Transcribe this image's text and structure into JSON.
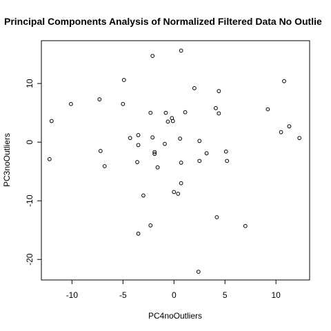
{
  "chart_data": {
    "type": "scatter",
    "title": "Principal Components Analysis of Normalized Filtered Data No Outlie",
    "xlabel": "PC4noOutliers",
    "ylabel": "PC3noOutliers",
    "xlim": [
      -13,
      13.3
    ],
    "ylim": [
      -23.5,
      17.3
    ],
    "x_ticks": [
      -10,
      -5,
      0,
      5,
      10
    ],
    "x_tick_labels": [
      "-10",
      "-5",
      "0",
      "5",
      "10"
    ],
    "y_ticks": [
      -20,
      -10,
      0,
      10
    ],
    "y_tick_labels": [
      "-20",
      "-10",
      "0",
      "10"
    ],
    "grid": false,
    "legend": "none",
    "marker": "open-circle",
    "colors": {
      "points": "#000000",
      "box": "#000000",
      "background": "#ffffff"
    },
    "points": [
      {
        "x": 0.7,
        "y": 15.6
      },
      {
        "x": -2.1,
        "y": 14.7
      },
      {
        "x": -4.9,
        "y": 10.6
      },
      {
        "x": 10.8,
        "y": 10.4
      },
      {
        "x": 2.0,
        "y": 9.2
      },
      {
        "x": 4.4,
        "y": 8.7
      },
      {
        "x": -7.3,
        "y": 7.3
      },
      {
        "x": -10.1,
        "y": 6.5
      },
      {
        "x": -5.0,
        "y": 6.5
      },
      {
        "x": 4.1,
        "y": 5.8
      },
      {
        "x": 9.2,
        "y": 5.6
      },
      {
        "x": -2.3,
        "y": 5.0
      },
      {
        "x": -0.8,
        "y": 5.0
      },
      {
        "x": 1.1,
        "y": 5.1
      },
      {
        "x": 4.4,
        "y": 4.9
      },
      {
        "x": -0.2,
        "y": 4.1
      },
      {
        "x": -0.6,
        "y": 3.5
      },
      {
        "x": -0.1,
        "y": 3.6
      },
      {
        "x": -12.0,
        "y": 3.6
      },
      {
        "x": 11.3,
        "y": 2.7
      },
      {
        "x": 10.5,
        "y": 1.7
      },
      {
        "x": -3.5,
        "y": 1.2
      },
      {
        "x": -4.3,
        "y": 0.7
      },
      {
        "x": -2.1,
        "y": 0.8
      },
      {
        "x": 0.6,
        "y": 0.6
      },
      {
        "x": 12.3,
        "y": 0.7
      },
      {
        "x": 2.5,
        "y": 0.2
      },
      {
        "x": -0.9,
        "y": -0.3
      },
      {
        "x": -3.5,
        "y": -0.5
      },
      {
        "x": -7.2,
        "y": -1.5
      },
      {
        "x": 5.1,
        "y": -1.6
      },
      {
        "x": -1.9,
        "y": -1.7
      },
      {
        "x": -1.9,
        "y": -2.0
      },
      {
        "x": 3.2,
        "y": -1.9
      },
      {
        "x": -12.2,
        "y": -2.9
      },
      {
        "x": 2.5,
        "y": -3.2
      },
      {
        "x": 5.2,
        "y": -3.2
      },
      {
        "x": -3.6,
        "y": -3.4
      },
      {
        "x": 0.7,
        "y": -3.5
      },
      {
        "x": -6.8,
        "y": -4.1
      },
      {
        "x": -1.6,
        "y": -4.3
      },
      {
        "x": 0.7,
        "y": -7.0
      },
      {
        "x": 0.0,
        "y": -8.5
      },
      {
        "x": 0.4,
        "y": -8.8
      },
      {
        "x": -3.0,
        "y": -9.1
      },
      {
        "x": 4.2,
        "y": -12.8
      },
      {
        "x": -2.3,
        "y": -14.2
      },
      {
        "x": 7.0,
        "y": -14.3
      },
      {
        "x": -3.5,
        "y": -15.6
      },
      {
        "x": 2.4,
        "y": -22.1
      }
    ]
  }
}
